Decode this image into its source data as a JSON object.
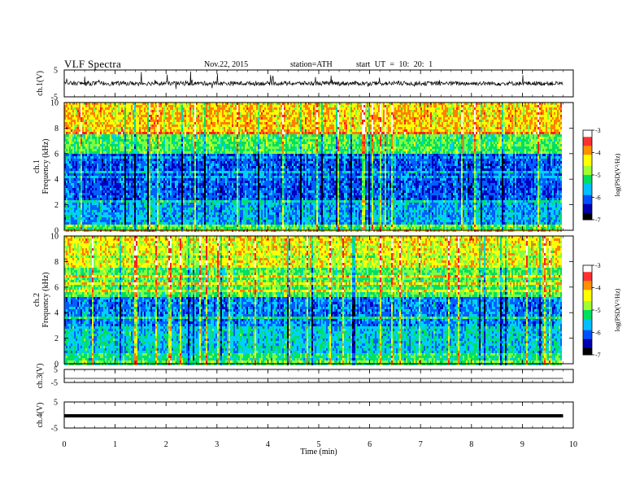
{
  "header": {
    "title": "VLF  Spectra",
    "date": "Nov.22, 2015",
    "station": "station=ATH",
    "start": "start  UT =   10: 20: 1"
  },
  "colorbar": {
    "label": "log(PSD(V²/Hz)",
    "ticks": [
      "-3",
      "-4",
      "-5",
      "-6",
      "-7"
    ],
    "colors": [
      "#ffffff",
      "#ff2020",
      "#ff8000",
      "#ffff00",
      "#80ff40",
      "#00e060",
      "#00d0ff",
      "#0060ff",
      "#0000c0",
      "#000000"
    ]
  },
  "chart_data": [
    {
      "type": "line",
      "panel": "ch.1 waveform",
      "ylabel": "ch.1(V)",
      "ytick_labels": [
        "5",
        "-5"
      ],
      "ylim": [
        -5,
        5
      ],
      "description_level": "noisy signal near 0 V with spikes"
    },
    {
      "type": "heatmap",
      "panel": "ch.1 spectrogram",
      "ylabel": "Frequency  (kHz)",
      "ylabel_channel": "ch.1",
      "yticks": [
        0,
        2,
        4,
        6,
        8,
        10
      ],
      "ylim": [
        0,
        10
      ],
      "color_scale": [
        -7,
        -3
      ]
    },
    {
      "type": "heatmap",
      "panel": "ch.2 spectrogram",
      "ylabel": "Frequency  (kHz)",
      "ylabel_channel": "ch.2",
      "yticks": [
        0,
        2,
        4,
        6,
        8,
        10
      ],
      "ylim": [
        0,
        10
      ],
      "color_scale": [
        -7,
        -3
      ]
    },
    {
      "type": "line",
      "panel": "ch.3 waveform",
      "ylabel": "ch.3(V)",
      "ytick_labels": [
        "5",
        "-5"
      ],
      "ylim": [
        -5,
        5
      ],
      "level": 0
    },
    {
      "type": "line",
      "panel": "ch.4 waveform",
      "ylabel": "ch.4(V)",
      "ytick_labels": [
        "5",
        "-5"
      ],
      "ylim": [
        -5,
        5
      ],
      "level": 0
    }
  ],
  "xaxis": {
    "label": "Time  (min)",
    "ticks": [
      0,
      1,
      2,
      3,
      4,
      5,
      6,
      7,
      8,
      9,
      10
    ],
    "xlim": [
      0,
      10
    ],
    "data_end": 9.8
  }
}
